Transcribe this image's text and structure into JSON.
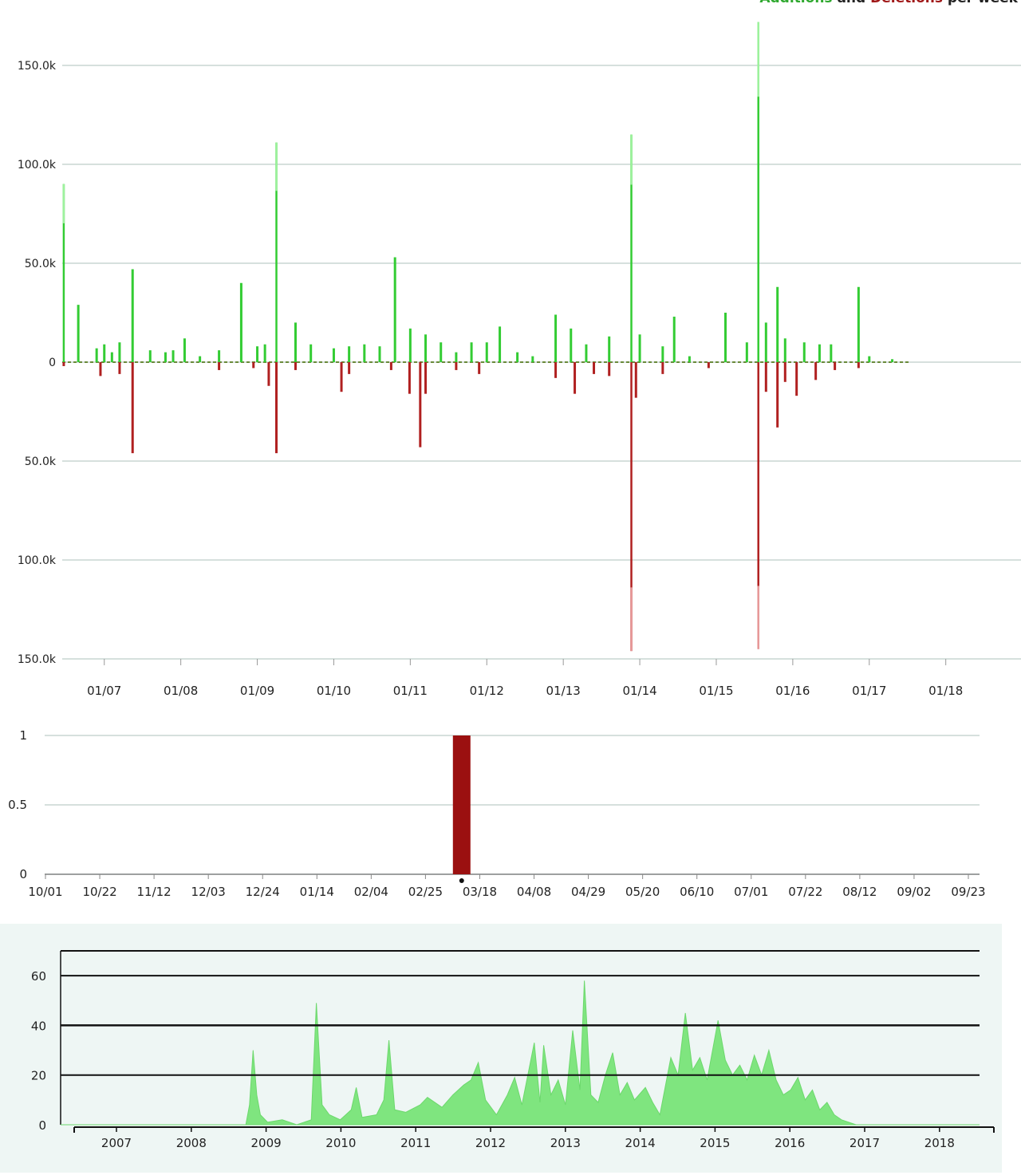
{
  "title": {
    "additions": "Additions",
    "and": " and ",
    "deletions": "Deletions",
    "rest": " per week"
  },
  "colors": {
    "additions": "#33cc33",
    "additions_light": "#9ef29e",
    "deletions": "#b02020",
    "deletions_light": "#e89a9a",
    "grid": "#c8d6d2",
    "bar": "#9b1010",
    "area": "#7fe57f"
  },
  "chart_data": [
    {
      "type": "bar",
      "title": "Additions and Deletions per week",
      "ylim": [
        -150000,
        150000
      ],
      "y_ticks": [
        150000,
        100000,
        50000,
        0,
        -50000,
        -100000,
        -150000
      ],
      "y_tick_labels": [
        "150.0k",
        "100.0k",
        "50.0k",
        "0",
        "50.0k",
        "100.0k",
        "150.0k"
      ],
      "x_ticks": [
        "01/07",
        "01/08",
        "01/09",
        "01/10",
        "01/11",
        "01/12",
        "01/13",
        "01/14",
        "01/15",
        "01/16",
        "01/17",
        "01/18"
      ],
      "x_tick_years": [
        2007,
        2008,
        2009,
        2010,
        2011,
        2012,
        2013,
        2014,
        2015,
        2016,
        2017,
        2018
      ],
      "xlim": [
        2006.45,
        2018.9
      ],
      "grid": true,
      "series": [
        {
          "name": "Additions",
          "points": [
            [
              2006.47,
              90000
            ],
            [
              2006.66,
              29000
            ],
            [
              2006.9,
              7000
            ],
            [
              2007.0,
              9000
            ],
            [
              2007.1,
              5000
            ],
            [
              2007.2,
              10000
            ],
            [
              2007.37,
              47000
            ],
            [
              2007.6,
              6000
            ],
            [
              2007.8,
              5000
            ],
            [
              2007.9,
              6000
            ],
            [
              2008.05,
              12000
            ],
            [
              2008.25,
              3000
            ],
            [
              2008.5,
              6000
            ],
            [
              2008.79,
              40000
            ],
            [
              2009.0,
              8000
            ],
            [
              2009.1,
              9000
            ],
            [
              2009.25,
              111000
            ],
            [
              2009.5,
              20000
            ],
            [
              2009.7,
              9000
            ],
            [
              2010.0,
              7000
            ],
            [
              2010.2,
              8000
            ],
            [
              2010.4,
              9000
            ],
            [
              2010.6,
              8000
            ],
            [
              2010.8,
              53000
            ],
            [
              2011.0,
              17000
            ],
            [
              2011.2,
              14000
            ],
            [
              2011.4,
              10000
            ],
            [
              2011.6,
              5000
            ],
            [
              2011.8,
              10000
            ],
            [
              2012.0,
              10000
            ],
            [
              2012.17,
              18000
            ],
            [
              2012.4,
              5000
            ],
            [
              2012.6,
              3000
            ],
            [
              2012.9,
              24000
            ],
            [
              2013.1,
              17000
            ],
            [
              2013.3,
              9000
            ],
            [
              2013.6,
              13000
            ],
            [
              2013.89,
              115000
            ],
            [
              2014.0,
              14000
            ],
            [
              2014.3,
              8000
            ],
            [
              2014.45,
              23000
            ],
            [
              2014.65,
              3000
            ],
            [
              2015.12,
              25000
            ],
            [
              2015.4,
              10000
            ],
            [
              2015.55,
              172000
            ],
            [
              2015.65,
              20000
            ],
            [
              2015.8,
              38000
            ],
            [
              2015.9,
              12000
            ],
            [
              2016.15,
              10000
            ],
            [
              2016.35,
              9000
            ],
            [
              2016.5,
              9000
            ],
            [
              2016.86,
              38000
            ],
            [
              2017.0,
              3000
            ],
            [
              2017.3,
              1500
            ]
          ]
        },
        {
          "name": "Deletions",
          "points": [
            [
              2006.47,
              -2000
            ],
            [
              2006.95,
              -7000
            ],
            [
              2007.2,
              -6000
            ],
            [
              2007.37,
              -46000
            ],
            [
              2008.5,
              -4000
            ],
            [
              2008.95,
              -3000
            ],
            [
              2009.15,
              -12000
            ],
            [
              2009.25,
              -46000
            ],
            [
              2009.5,
              -4000
            ],
            [
              2010.1,
              -15000
            ],
            [
              2010.2,
              -6000
            ],
            [
              2010.75,
              -4000
            ],
            [
              2010.99,
              -16000
            ],
            [
              2011.13,
              -43000
            ],
            [
              2011.2,
              -16000
            ],
            [
              2011.6,
              -4000
            ],
            [
              2011.9,
              -6000
            ],
            [
              2012.9,
              -8000
            ],
            [
              2013.15,
              -16000
            ],
            [
              2013.4,
              -6000
            ],
            [
              2013.6,
              -7000
            ],
            [
              2013.89,
              -146000
            ],
            [
              2013.95,
              -18000
            ],
            [
              2014.3,
              -6000
            ],
            [
              2014.9,
              -3000
            ],
            [
              2015.55,
              -145000
            ],
            [
              2015.65,
              -15000
            ],
            [
              2015.8,
              -33000
            ],
            [
              2015.9,
              -10000
            ],
            [
              2016.05,
              -17000
            ],
            [
              2016.3,
              -9000
            ],
            [
              2016.55,
              -4000
            ],
            [
              2016.86,
              -3000
            ]
          ]
        }
      ]
    },
    {
      "type": "bar",
      "ylim": [
        0,
        1
      ],
      "y_ticks": [
        1,
        0.5,
        0
      ],
      "y_tick_labels": [
        "1",
        "0.5",
        "0"
      ],
      "x_ticks": [
        "10/01",
        "10/22",
        "11/12",
        "12/03",
        "12/24",
        "01/14",
        "02/04",
        "02/25",
        "03/18",
        "04/08",
        "04/29",
        "05/20",
        "06/10",
        "07/01",
        "07/22",
        "08/12",
        "09/02",
        "09/23"
      ],
      "grid": true,
      "bars": [
        {
          "x": "03/04",
          "value": 1
        }
      ]
    },
    {
      "type": "area",
      "ylim": [
        0,
        70
      ],
      "y_ticks": [
        60,
        40,
        20,
        0
      ],
      "y_tick_labels": [
        "60",
        "40",
        "20",
        "0"
      ],
      "x_ticks": [
        "2007",
        "2008",
        "2009",
        "2010",
        "2011",
        "2012",
        "2013",
        "2014",
        "2015",
        "2016",
        "2017",
        "2018"
      ],
      "x_tick_years": [
        2007,
        2008,
        2009,
        2010,
        2011,
        2012,
        2013,
        2014,
        2015,
        2016,
        2017,
        2018
      ],
      "xlim": [
        2006.45,
        2019.1
      ],
      "grid": true,
      "points": [
        [
          2006.45,
          0
        ],
        [
          2009.0,
          0
        ],
        [
          2009.05,
          8
        ],
        [
          2009.1,
          30
        ],
        [
          2009.15,
          12
        ],
        [
          2009.2,
          4
        ],
        [
          2009.3,
          1
        ],
        [
          2009.5,
          2
        ],
        [
          2009.7,
          0
        ],
        [
          2009.9,
          2
        ],
        [
          2009.97,
          49
        ],
        [
          2010.05,
          8
        ],
        [
          2010.15,
          4
        ],
        [
          2010.3,
          2
        ],
        [
          2010.45,
          6
        ],
        [
          2010.52,
          15
        ],
        [
          2010.6,
          3
        ],
        [
          2010.8,
          4
        ],
        [
          2010.9,
          10
        ],
        [
          2010.97,
          34
        ],
        [
          2011.05,
          6
        ],
        [
          2011.2,
          5
        ],
        [
          2011.4,
          8
        ],
        [
          2011.5,
          11
        ],
        [
          2011.7,
          7
        ],
        [
          2011.85,
          12
        ],
        [
          2012.0,
          16
        ],
        [
          2012.1,
          18
        ],
        [
          2012.2,
          25
        ],
        [
          2012.3,
          10
        ],
        [
          2012.45,
          4
        ],
        [
          2012.6,
          12
        ],
        [
          2012.7,
          19
        ],
        [
          2012.8,
          8
        ],
        [
          2012.97,
          33
        ],
        [
          2013.05,
          9
        ],
        [
          2013.1,
          32
        ],
        [
          2013.2,
          12
        ],
        [
          2013.3,
          18
        ],
        [
          2013.4,
          8
        ],
        [
          2013.5,
          38
        ],
        [
          2013.6,
          14
        ],
        [
          2013.66,
          58
        ],
        [
          2013.75,
          12
        ],
        [
          2013.85,
          9
        ],
        [
          2013.95,
          20
        ],
        [
          2014.05,
          29
        ],
        [
          2014.15,
          12
        ],
        [
          2014.25,
          17
        ],
        [
          2014.35,
          10
        ],
        [
          2014.5,
          15
        ],
        [
          2014.6,
          9
        ],
        [
          2014.7,
          4
        ],
        [
          2014.85,
          27
        ],
        [
          2014.95,
          20
        ],
        [
          2015.05,
          45
        ],
        [
          2015.15,
          22
        ],
        [
          2015.25,
          27
        ],
        [
          2015.35,
          18
        ],
        [
          2015.5,
          42
        ],
        [
          2015.6,
          26
        ],
        [
          2015.7,
          20
        ],
        [
          2015.8,
          24
        ],
        [
          2015.9,
          18
        ],
        [
          2016.0,
          28
        ],
        [
          2016.1,
          20
        ],
        [
          2016.2,
          30
        ],
        [
          2016.3,
          18
        ],
        [
          2016.4,
          12
        ],
        [
          2016.5,
          14
        ],
        [
          2016.6,
          19
        ],
        [
          2016.7,
          10
        ],
        [
          2016.8,
          14
        ],
        [
          2016.9,
          6
        ],
        [
          2017.0,
          9
        ],
        [
          2017.1,
          4
        ],
        [
          2017.2,
          2
        ],
        [
          2017.4,
          0
        ],
        [
          2019.1,
          0
        ]
      ]
    }
  ]
}
